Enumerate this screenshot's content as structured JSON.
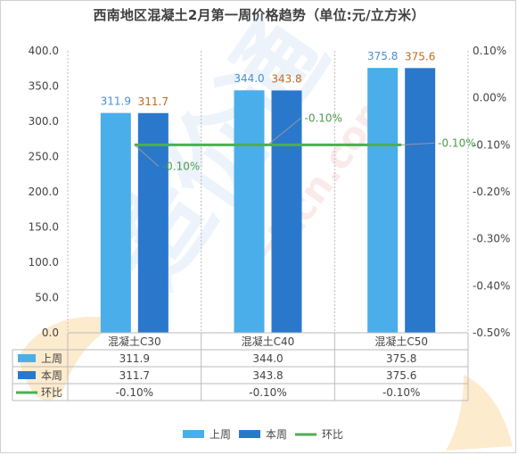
{
  "chart_data": {
    "type": "bar",
    "title": "西南地区混凝土2月第一周价格趋势（单位:元/立方米）",
    "categories": [
      "混凝土C30",
      "混凝土C40",
      "混凝土C50"
    ],
    "series": [
      {
        "name": "上周",
        "type": "bar",
        "values": [
          311.9,
          344.0,
          375.8
        ],
        "color": "#4aaeea",
        "label_color": "#4a8fd0"
      },
      {
        "name": "本周",
        "type": "bar",
        "values": [
          311.7,
          343.8,
          375.6
        ],
        "color": "#2a78cc",
        "label_color": "#c26a1d"
      },
      {
        "name": "环比",
        "type": "line",
        "axis": "right",
        "values": [
          -0.001,
          -0.001,
          -0.001
        ],
        "labels": [
          "-0.10%",
          "-0.10%",
          "-0.10%"
        ],
        "color": "#4caf50"
      }
    ],
    "y_left": {
      "min": 0,
      "max": 400,
      "ticks": [
        "0.0",
        "50.0",
        "100.0",
        "150.0",
        "200.0",
        "250.0",
        "300.0",
        "350.0",
        "400.0"
      ]
    },
    "y_right": {
      "min": -0.005,
      "max": 0.001,
      "ticks": [
        "-0.50%",
        "-0.40%",
        "-0.30%",
        "-0.20%",
        "-0.10%",
        "0.00%",
        "0.10%"
      ]
    },
    "data_table": {
      "rows": [
        {
          "name": "上周",
          "values": [
            "311.9",
            "344.0",
            "375.8"
          ]
        },
        {
          "name": "本周",
          "values": [
            "311.7",
            "343.8",
            "375.6"
          ]
        },
        {
          "name": "环比",
          "values": [
            "-0.10%",
            "-0.10%",
            "-0.10%"
          ]
        }
      ]
    },
    "legend": {
      "position": "bottom",
      "items": [
        "上周",
        "本周",
        "环比"
      ]
    },
    "grid": false
  },
  "watermark": {
    "text": "zjtcn.com",
    "brand": "造价通"
  }
}
